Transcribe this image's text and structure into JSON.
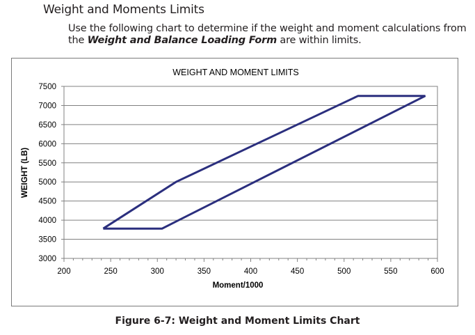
{
  "page": {
    "section_title": "Weight and Moments Limits",
    "intro_before": "Use the following chart to determine if the weight and moment calculations from the ",
    "intro_form_name": "Weight and Balance Loading Form",
    "intro_after": " are within limits.",
    "caption": "Figure 6-7:  Weight and Moment Limits Chart"
  },
  "chart_data": {
    "type": "line",
    "title": "WEIGHT AND MOMENT LIMITS",
    "xlabel": "Moment/1000",
    "ylabel": "WEIGHT (LB)",
    "xlim": [
      200,
      600
    ],
    "ylim": [
      3000,
      7500
    ],
    "xticks": [
      200,
      250,
      300,
      350,
      400,
      450,
      500,
      550,
      600
    ],
    "yticks": [
      3000,
      3500,
      4000,
      4500,
      5000,
      5500,
      6000,
      6500,
      7000,
      7500
    ],
    "grid": "horizontal",
    "line_color": "#2b2f7e",
    "series": [
      {
        "closed": true,
        "points": [
          [
            242,
            3780
          ],
          [
            305,
            3780
          ],
          [
            587,
            7250
          ],
          [
            515,
            7250
          ],
          [
            320,
            5000
          ],
          [
            242,
            3780
          ]
        ]
      }
    ]
  }
}
